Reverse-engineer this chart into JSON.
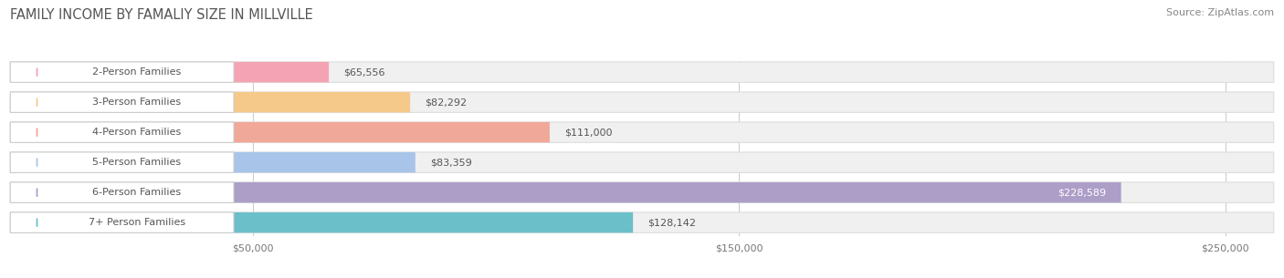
{
  "title": "FAMILY INCOME BY FAMALIY SIZE IN MILLVILLE",
  "source": "Source: ZipAtlas.com",
  "categories": [
    "2-Person Families",
    "3-Person Families",
    "4-Person Families",
    "5-Person Families",
    "6-Person Families",
    "7+ Person Families"
  ],
  "values": [
    65556,
    82292,
    111000,
    83359,
    228589,
    128142
  ],
  "bar_colors": [
    "#f4a3b5",
    "#f5c98a",
    "#f0a898",
    "#a8c4e8",
    "#ad9ec8",
    "#6bbfc8"
  ],
  "value_labels": [
    "$65,556",
    "$82,292",
    "$111,000",
    "$83,359",
    "$228,589",
    "$128,142"
  ],
  "x_ticks": [
    50000,
    150000,
    250000
  ],
  "x_tick_labels": [
    "$50,000",
    "$150,000",
    "$250,000"
  ],
  "xmax": 260000,
  "title_fontsize": 10.5,
  "source_fontsize": 8,
  "bar_label_fontsize": 8,
  "value_fontsize": 8,
  "background_color": "#ffffff",
  "bar_bg_color": "#f0f0f0",
  "bar_bg_edge_color": "#dddddd",
  "label_box_color": "#ffffff",
  "label_box_edge_color": "#cccccc",
  "grid_color": "#cccccc",
  "title_color": "#555555",
  "source_color": "#888888",
  "text_color": "#555555",
  "value_inside_color": "#ffffff"
}
